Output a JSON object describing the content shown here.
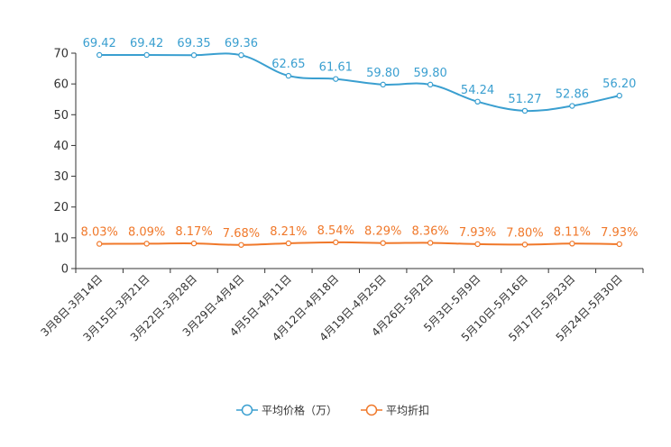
{
  "chart_data": {
    "type": "line",
    "title": "",
    "xlabel": "",
    "ylabel": "",
    "ylim": [
      0,
      70
    ],
    "yticks": [
      0,
      10,
      20,
      30,
      40,
      50,
      60,
      70
    ],
    "grid": false,
    "legend_position": "bottom",
    "categories": [
      "3月8日-3月14日",
      "3月15日-3月21日",
      "3月22日-3月28日",
      "3月29日-4月4日",
      "4月5日-4月11日",
      "4月12日-4月18日",
      "4月19日-4月25日",
      "4月26日-5月2日",
      "5月3日-5月9日",
      "5月10日-5月16日",
      "5月17日-5月23日",
      "5月24日-5月30日"
    ],
    "series": [
      {
        "name": "平均价格（万）",
        "color": "#3a9fd0",
        "values": [
          69.42,
          69.42,
          69.35,
          69.36,
          62.65,
          61.61,
          59.8,
          59.8,
          54.24,
          51.27,
          52.86,
          56.2
        ],
        "labels": [
          "69.42",
          "69.42",
          "69.35",
          "69.36",
          "62.65",
          "61.61",
          "59.80",
          "59.80",
          "54.24",
          "51.27",
          "52.86",
          "56.20"
        ]
      },
      {
        "name": "平均折扣",
        "color": "#f0782a",
        "values": [
          8.03,
          8.09,
          8.17,
          7.68,
          8.21,
          8.54,
          8.29,
          8.36,
          7.93,
          7.8,
          8.11,
          7.93
        ],
        "labels": [
          "8.03%",
          "8.09%",
          "8.17%",
          "7.68%",
          "8.21%",
          "8.54%",
          "8.29%",
          "8.36%",
          "7.93%",
          "7.80%",
          "8.11%",
          "7.93%"
        ]
      }
    ]
  }
}
